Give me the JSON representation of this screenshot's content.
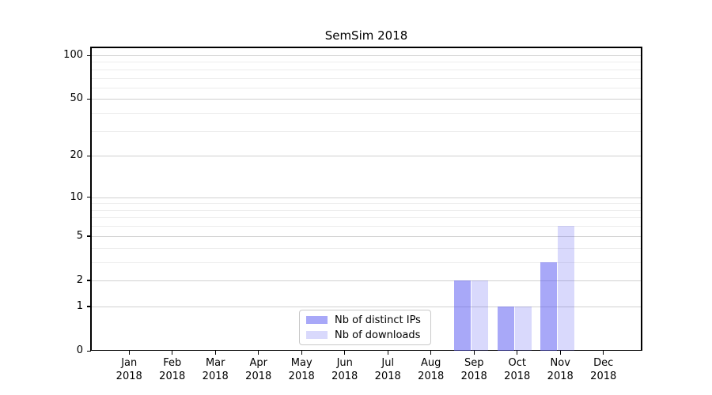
{
  "chart_data": {
    "type": "bar",
    "title": "SemSim 2018",
    "categories": [
      "Jan 2018",
      "Feb 2018",
      "Mar 2018",
      "Apr 2018",
      "May 2018",
      "Jun 2018",
      "Jul 2018",
      "Aug 2018",
      "Sep 2018",
      "Oct 2018",
      "Nov 2018",
      "Dec 2018"
    ],
    "month_labels": [
      "Jan",
      "Feb",
      "Mar",
      "Apr",
      "May",
      "Jun",
      "Jul",
      "Aug",
      "Sep",
      "Oct",
      "Nov",
      "Dec"
    ],
    "year_label": "2018",
    "series": [
      {
        "name": "Nb of distinct IPs",
        "color": "#5151f1",
        "alpha": 0.5,
        "values": [
          0,
          0,
          0,
          0,
          0,
          0,
          0,
          0,
          2,
          1,
          3,
          0
        ]
      },
      {
        "name": "Nb of downloads",
        "color": "#5151f1",
        "alpha": 0.22,
        "values": [
          0,
          0,
          0,
          0,
          0,
          0,
          0,
          0,
          2,
          1,
          6,
          0
        ]
      }
    ],
    "yscale": "log1p",
    "ylim": [
      0,
      113
    ],
    "yticks": [
      0,
      1,
      2,
      5,
      10,
      20,
      50,
      100
    ],
    "minor_gridlines": [
      3,
      4,
      6,
      7,
      8,
      9,
      30,
      40,
      60,
      70,
      80,
      90
    ],
    "grid": "on",
    "legend_position": "lower-center-inside"
  },
  "colors": {
    "bar_dark_on_white": "#a8a8f8",
    "bar_light_on_white": "#d8d8f8",
    "grid_major": "#d0d0d0",
    "grid_minor": "#ededed",
    "spine": "#000000",
    "legend_border": "#c9c9c9",
    "background": "#ffffff"
  }
}
